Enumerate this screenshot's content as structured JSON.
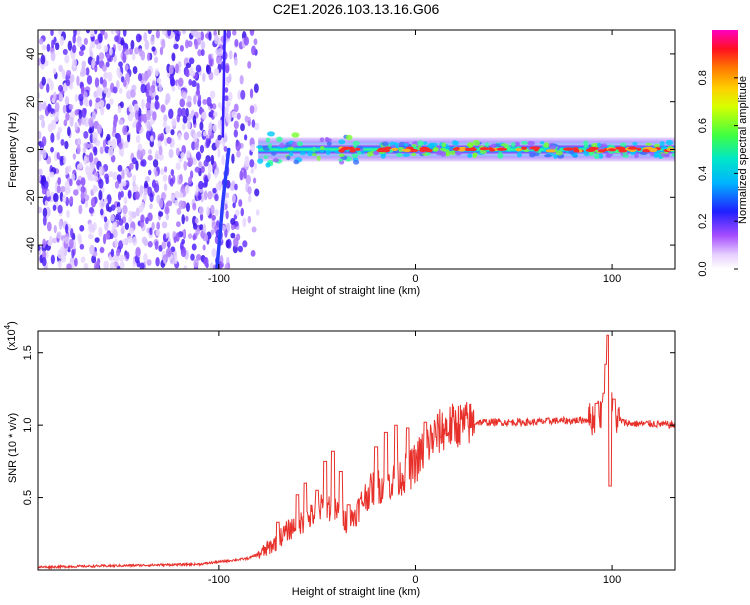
{
  "title": "C2E1.2026.103.13.16.G06",
  "top_panel": {
    "chart_data": {
      "type": "heatmap",
      "title": "C2E1.2026.103.13.16.G06",
      "xlabel": "Height of straight line (km)",
      "ylabel": "Frequency (Hz)",
      "xlim": [
        -192,
        132
      ],
      "ylim": [
        -50,
        50
      ],
      "x_ticks": [
        -100,
        0,
        100
      ],
      "y_ticks": [
        -40,
        -20,
        0,
        20,
        40
      ],
      "noise_region_x": [
        -192,
        -80
      ],
      "doppler_streak": {
        "x": [
          -95,
          -98,
          -101
        ],
        "y": [
          0,
          -22,
          -50
        ]
      },
      "upper_streak_x": -97,
      "signal_ridge_x": [
        -80,
        132
      ],
      "signal_ridge_y": 0,
      "colorbar": {
        "label": "Normalized spectral amplitude",
        "range": [
          0,
          1
        ],
        "ticks": [
          0.0,
          0.2,
          0.4,
          0.6,
          0.8
        ]
      }
    }
  },
  "bottom_panel": {
    "chart_data": {
      "type": "line",
      "xlabel": "Height of straight line (km)",
      "ylabel": "SNR (10 * v/v)",
      "multiplier_label": "(x10",
      "multiplier_exp": "4",
      "multiplier_close": ")",
      "xlim": [
        -192,
        132
      ],
      "ylim": [
        0.0,
        1.65
      ],
      "x_ticks": [
        -100,
        0,
        100
      ],
      "y_ticks": [
        0.5,
        1.0,
        1.5
      ],
      "series": [
        {
          "name": "SNR",
          "color": "#e8302a",
          "envelope_x": [
            -192,
            -150,
            -110,
            -85,
            -78,
            -72,
            -66,
            -62,
            -58,
            -54,
            -50,
            -46,
            -42,
            -38,
            -34,
            -30,
            -26,
            -22,
            -18,
            -14,
            -10,
            -6,
            -2,
            2,
            6,
            10,
            14,
            20,
            26,
            32,
            40,
            50,
            60,
            70,
            80,
            88,
            92,
            95,
            97,
            99,
            102,
            106,
            110,
            120,
            132
          ],
          "envelope_y": [
            0.02,
            0.03,
            0.04,
            0.08,
            0.12,
            0.18,
            0.26,
            0.3,
            0.33,
            0.36,
            0.4,
            0.45,
            0.42,
            0.38,
            0.32,
            0.4,
            0.5,
            0.56,
            0.58,
            0.6,
            0.62,
            0.66,
            0.7,
            0.78,
            0.86,
            0.93,
            0.97,
            1.0,
            1.01,
            1.02,
            1.02,
            1.02,
            1.02,
            1.03,
            1.03,
            1.04,
            1.05,
            1.1,
            1.2,
            1.15,
            1.05,
            1.02,
            1.01,
            1.01,
            1.0
          ],
          "spikes": [
            {
              "x": -70,
              "y": 0.33
            },
            {
              "x": -60,
              "y": 0.52
            },
            {
              "x": -56,
              "y": 0.6
            },
            {
              "x": -50,
              "y": 0.55
            },
            {
              "x": -46,
              "y": 0.75
            },
            {
              "x": -42,
              "y": 0.82
            },
            {
              "x": -38,
              "y": 0.68
            },
            {
              "x": -34,
              "y": 0.45
            },
            {
              "x": -20,
              "y": 0.85
            },
            {
              "x": -15,
              "y": 0.95
            },
            {
              "x": -10,
              "y": 1.0
            },
            {
              "x": -4,
              "y": 0.98
            },
            {
              "x": 5,
              "y": 1.02
            },
            {
              "x": 92,
              "y": 1.15
            },
            {
              "x": 96,
              "y": 1.22
            },
            {
              "x": 97,
              "y": 1.42
            },
            {
              "x": 98,
              "y": 1.62
            },
            {
              "x": 99,
              "y": 0.58
            },
            {
              "x": 101,
              "y": 1.18
            }
          ]
        }
      ]
    }
  }
}
